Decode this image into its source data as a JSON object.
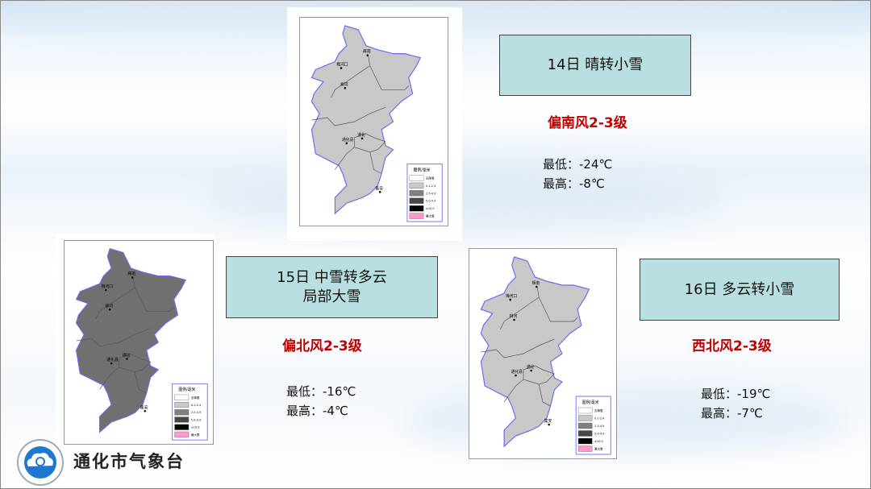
{
  "legend": {
    "title": "图例/毫米",
    "items": [
      {
        "label": "无降雪",
        "color": "#ffffff"
      },
      {
        "label": "0.1-2.4",
        "color": "#c8c8c8"
      },
      {
        "label": "2.5-4.9",
        "color": "#808080"
      },
      {
        "label": "5.0-9.9",
        "color": "#484848"
      },
      {
        "label": "≥10.0",
        "color": "#000000"
      },
      {
        "label": "暴大雪",
        "color": "#ff99cc"
      }
    ]
  },
  "towns": [
    "辉南",
    "梅河口",
    "柳河",
    "通化县",
    "通化",
    "集安"
  ],
  "days": [
    {
      "title": "14日 晴转小雪",
      "line2": "",
      "wind": "偏南风2-3级",
      "low": "最低：-24℃",
      "high": "最高：-8℃",
      "map_fill": "#c8c8c8"
    },
    {
      "title": "15日 中雪转多云",
      "line2": "局部大雪",
      "wind": "偏北风2-3级",
      "low": "最低：-16℃",
      "high": "最高：-4℃",
      "map_fill": "#707070"
    },
    {
      "title": "16日 多云转小雪",
      "line2": "",
      "wind": "西北风2-3级",
      "low": "最低：-19℃",
      "high": "最高：-7℃",
      "map_fill": "#c8c8c8"
    }
  ],
  "logo": {
    "name": "通化市气象台",
    "seal_text": "中国气象局"
  }
}
